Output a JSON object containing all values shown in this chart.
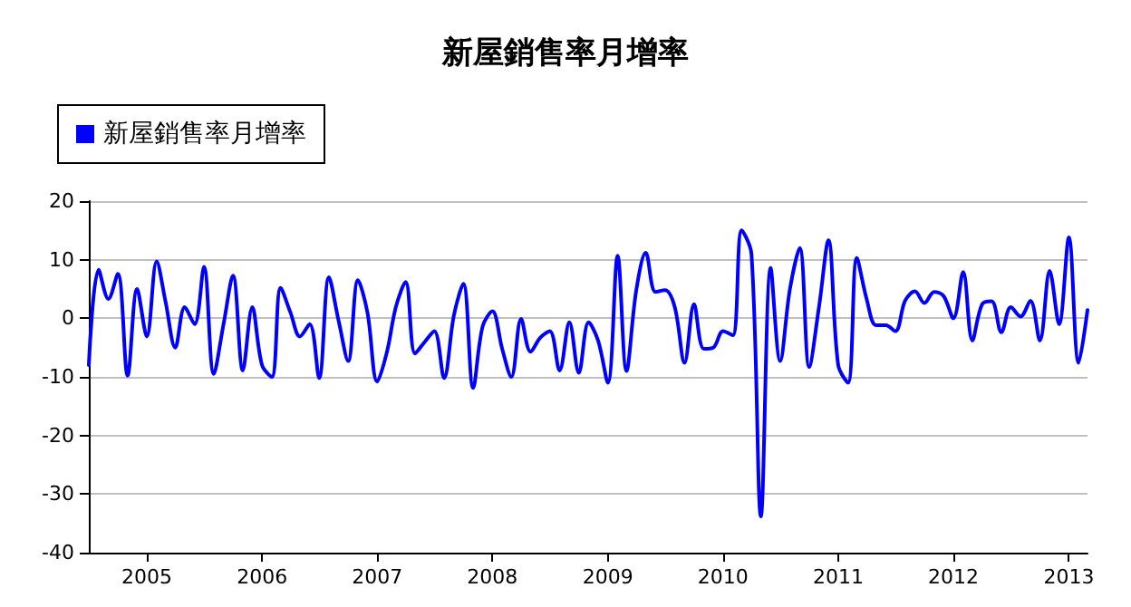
{
  "chart_data": {
    "type": "line",
    "title": "新屋銷售率月增率",
    "x": [
      "2004-07",
      "2004-08",
      "2004-09",
      "2004-10",
      "2004-11",
      "2004-12",
      "2005-01",
      "2005-02",
      "2005-03",
      "2005-04",
      "2005-05",
      "2005-06",
      "2005-07",
      "2005-08",
      "2005-09",
      "2005-10",
      "2005-11",
      "2005-12",
      "2006-01",
      "2006-02",
      "2006-03",
      "2006-04",
      "2006-05",
      "2006-06",
      "2006-07",
      "2006-08",
      "2006-09",
      "2006-10",
      "2006-11",
      "2006-12",
      "2007-01",
      "2007-02",
      "2007-03",
      "2007-04",
      "2007-05",
      "2007-06",
      "2007-07",
      "2007-08",
      "2007-09",
      "2007-10",
      "2007-11",
      "2007-12",
      "2008-01",
      "2008-02",
      "2008-03",
      "2008-04",
      "2008-05",
      "2008-06",
      "2008-07",
      "2008-08",
      "2008-09",
      "2008-10",
      "2008-11",
      "2008-12",
      "2009-01",
      "2009-02",
      "2009-03",
      "2009-04",
      "2009-05",
      "2009-06",
      "2009-07",
      "2009-08",
      "2009-09",
      "2009-10",
      "2009-11",
      "2009-12",
      "2010-01",
      "2010-02",
      "2010-03",
      "2010-04",
      "2010-05",
      "2010-06",
      "2010-07",
      "2010-08",
      "2010-09",
      "2010-10",
      "2010-11",
      "2010-12",
      "2011-01",
      "2011-02",
      "2011-03",
      "2011-04",
      "2011-05",
      "2011-06",
      "2011-07",
      "2011-08",
      "2011-09",
      "2011-10",
      "2011-11",
      "2011-12",
      "2012-01",
      "2012-02",
      "2012-03",
      "2012-04",
      "2012-05",
      "2012-06",
      "2012-07",
      "2012-08",
      "2012-09",
      "2012-10",
      "2012-11",
      "2012-12",
      "2013-01",
      "2013-02",
      "2013-03"
    ],
    "series": [
      {
        "name": "新屋銷售率月增率",
        "color": "#0000ff",
        "values": [
          -8,
          8.3,
          3.3,
          7.6,
          -9.8,
          5,
          -3.1,
          9.7,
          2.9,
          -5,
          1.9,
          -1,
          8.8,
          -9.5,
          -1,
          7.3,
          -8.9,
          1.9,
          -8,
          -10,
          5.2,
          1,
          -3.1,
          -1,
          -10.2,
          7,
          -0.5,
          -7.3,
          6.5,
          1,
          -10.8,
          -5.7,
          1.9,
          6.2,
          -6,
          -4,
          -2.2,
          -10.2,
          0.5,
          5.9,
          -11.9,
          -1.4,
          1.2,
          -5.2,
          -10,
          -0.1,
          -5.7,
          -3.3,
          -2.2,
          -8.9,
          -0.7,
          -9.3,
          -0.7,
          -3.8,
          -11,
          10.7,
          -9,
          4.8,
          11.2,
          4.5,
          4.8,
          1.9,
          -7.6,
          2.4,
          -5.2,
          -5,
          -2.2,
          -2.9,
          15,
          11,
          -33.8,
          8.6,
          -7.3,
          5,
          12,
          -8.3,
          1.9,
          13.3,
          -8,
          -11,
          10.3,
          3.3,
          -1.2,
          -1.2,
          -2.2,
          3,
          4.6,
          2.6,
          4.5,
          3.8,
          0,
          7.9,
          -3.8,
          2.4,
          2.9,
          -2.4,
          1.9,
          0.3,
          3,
          -3.8,
          8.1,
          -1,
          13.8,
          -7.6,
          1.4
        ]
      }
    ],
    "xlim": [
      "2004-07",
      "2013-03"
    ],
    "xticks": [
      "2005",
      "2006",
      "2007",
      "2008",
      "2009",
      "2010",
      "2011",
      "2012",
      "2013"
    ],
    "ylim": [
      -40,
      20
    ],
    "yticks": [
      -40,
      -30,
      -20,
      -10,
      0,
      10,
      20
    ],
    "grid": "y",
    "legend": "top left",
    "marker": "none",
    "line_style": "solid"
  }
}
